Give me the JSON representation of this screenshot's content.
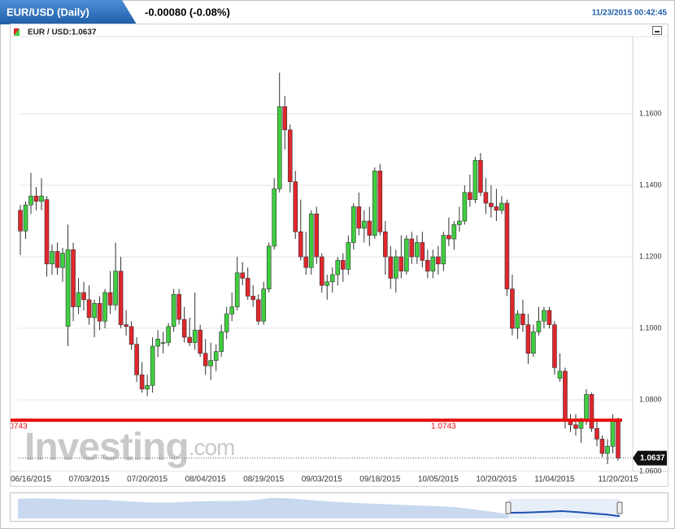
{
  "chart_data": {
    "type": "candlestick",
    "title": "EUR/USD (Daily)",
    "change": "-0.00080 (-0.08%)",
    "timestamp": "11/23/2015 00:42:45",
    "instrument_label": "EUR / USD:1.0637",
    "last_price": 1.0637,
    "hline": {
      "value": 1.0743,
      "color": "#e81010"
    },
    "watermark": "Investing",
    "watermark_suffix": ".com",
    "up_color": "#3fce3f",
    "down_color": "#e0262c",
    "grid": true,
    "ylim": [
      1.06,
      1.1816
    ],
    "yticks": [
      {
        "value": 1.06,
        "label": "1.0600"
      },
      {
        "value": 1.08,
        "label": "1.0800"
      },
      {
        "value": 1.1,
        "label": "1.1000"
      },
      {
        "value": 1.12,
        "label": "1.1200"
      },
      {
        "value": 1.14,
        "label": "1.1400"
      },
      {
        "value": 1.16,
        "label": "1.1600"
      }
    ],
    "categories": [
      null,
      null,
      "06/16/2015",
      null,
      null,
      null,
      null,
      null,
      null,
      null,
      null,
      null,
      null,
      "07/03/2015",
      null,
      null,
      null,
      null,
      null,
      null,
      null,
      null,
      null,
      null,
      "07/20/2015",
      null,
      null,
      null,
      null,
      null,
      null,
      null,
      null,
      null,
      null,
      "08/04/2015",
      null,
      null,
      null,
      null,
      null,
      null,
      null,
      null,
      null,
      null,
      "08/19/2015",
      null,
      null,
      null,
      null,
      null,
      null,
      null,
      null,
      null,
      null,
      "09/03/2015",
      null,
      null,
      null,
      null,
      null,
      null,
      null,
      null,
      null,
      null,
      "09/18/2015",
      null,
      null,
      null,
      null,
      null,
      null,
      null,
      null,
      null,
      null,
      "10/05/2015",
      null,
      null,
      null,
      null,
      null,
      null,
      null,
      null,
      null,
      null,
      "10/20/2015",
      null,
      null,
      null,
      null,
      null,
      null,
      null,
      null,
      null,
      null,
      "11/04/2015",
      null,
      null,
      null,
      null,
      null,
      null,
      null,
      null,
      null,
      null,
      null,
      "11/20/2015"
    ],
    "open": [
      1.133,
      1.1272,
      1.1345,
      1.137,
      1.1355,
      1.136,
      1.118,
      1.1215,
      1.117,
      1.1005,
      1.122,
      1.106,
      1.11,
      1.108,
      1.103,
      1.107,
      1.102,
      1.11,
      1.1065,
      1.116,
      1.101,
      1.1005,
      1.0955,
      1.087,
      1.083,
      1.084,
      1.095,
      1.096,
      1.096,
      1.1005,
      1.1095,
      1.1025,
      1.0975,
      1.096,
      1.0995,
      1.093,
      1.0895,
      1.091,
      1.0935,
      1.099,
      1.104,
      1.106,
      1.1155,
      1.114,
      1.109,
      1.108,
      1.102,
      1.111,
      1.123,
      1.139,
      1.162,
      1.1555,
      1.141,
      1.127,
      1.12,
      1.117,
      1.132,
      1.12,
      1.112,
      1.113,
      1.115,
      1.119,
      1.1165,
      1.124,
      1.134,
      1.128,
      1.13,
      1.126,
      1.144,
      1.127,
      1.12,
      1.114,
      1.12,
      1.116,
      1.125,
      1.12,
      1.124,
      1.119,
      1.116,
      1.12,
      1.118,
      1.126,
      1.125,
      1.129,
      1.13,
      1.138,
      1.136,
      1.147,
      1.138,
      1.135,
      1.134,
      1.133,
      1.135,
      1.111,
      1.1,
      1.104,
      1.101,
      1.093,
      1.099,
      1.102,
      1.105,
      1.101,
      1.086,
      1.088,
      1.074,
      1.073,
      1.072,
      1.074,
      1.0815,
      1.072,
      1.069,
      1.065,
      1.067,
      1.074
    ],
    "high": [
      1.1345,
      1.1355,
      1.1435,
      1.1395,
      1.142,
      1.137,
      1.1235,
      1.124,
      1.1225,
      1.129,
      1.124,
      1.114,
      1.113,
      1.112,
      1.108,
      1.109,
      1.111,
      1.116,
      1.124,
      1.12,
      1.105,
      1.102,
      1.0975,
      1.0905,
      1.087,
      1.0975,
      1.0995,
      1.099,
      1.1015,
      1.111,
      1.111,
      1.106,
      1.103,
      1.11,
      1.101,
      1.097,
      1.096,
      1.0955,
      1.101,
      1.106,
      1.11,
      1.12,
      1.1185,
      1.117,
      1.112,
      1.1095,
      1.113,
      1.124,
      1.142,
      1.1715,
      1.165,
      1.157,
      1.144,
      1.136,
      1.127,
      1.133,
      1.134,
      1.121,
      1.115,
      1.117,
      1.12,
      1.121,
      1.126,
      1.135,
      1.138,
      1.133,
      1.134,
      1.145,
      1.146,
      1.13,
      1.123,
      1.122,
      1.126,
      1.126,
      1.127,
      1.126,
      1.127,
      1.122,
      1.122,
      1.123,
      1.127,
      1.131,
      1.13,
      1.134,
      1.14,
      1.143,
      1.148,
      1.149,
      1.142,
      1.14,
      1.139,
      1.137,
      1.136,
      1.115,
      1.105,
      1.108,
      1.104,
      1.101,
      1.106,
      1.106,
      1.106,
      1.102,
      1.093,
      1.089,
      1.076,
      1.076,
      1.075,
      1.083,
      1.082,
      1.074,
      1.07,
      1.069,
      1.076,
      1.075
    ],
    "low": [
      1.1205,
      1.125,
      1.132,
      1.133,
      1.133,
      1.1145,
      1.115,
      1.115,
      1.113,
      1.095,
      1.102,
      1.104,
      1.105,
      1.101,
      1.0975,
      1.0995,
      1.1,
      1.104,
      1.105,
      1.1,
      1.098,
      1.094,
      1.085,
      1.082,
      1.081,
      1.082,
      1.092,
      1.093,
      1.095,
      1.099,
      1.101,
      1.096,
      1.095,
      1.094,
      1.092,
      1.087,
      1.0855,
      1.088,
      1.092,
      1.097,
      1.102,
      1.105,
      1.112,
      1.108,
      1.106,
      1.101,
      1.101,
      1.11,
      1.122,
      1.138,
      1.15,
      1.138,
      1.125,
      1.119,
      1.115,
      1.115,
      1.118,
      1.11,
      1.108,
      1.11,
      1.112,
      1.113,
      1.115,
      1.122,
      1.126,
      1.124,
      1.123,
      1.125,
      1.126,
      1.115,
      1.111,
      1.11,
      1.114,
      1.115,
      1.118,
      1.118,
      1.117,
      1.114,
      1.114,
      1.115,
      1.116,
      1.123,
      1.122,
      1.127,
      1.129,
      1.134,
      1.135,
      1.137,
      1.132,
      1.131,
      1.13,
      1.132,
      1.109,
      1.098,
      1.097,
      1.099,
      1.09,
      1.092,
      1.098,
      1.1,
      1.1,
      1.087,
      1.085,
      1.072,
      1.071,
      1.07,
      1.068,
      1.073,
      1.071,
      1.067,
      1.064,
      1.062,
      1.065,
      1.063
    ],
    "close": [
      1.1272,
      1.1345,
      1.137,
      1.1355,
      1.137,
      1.118,
      1.1215,
      1.117,
      1.121,
      1.122,
      1.106,
      1.11,
      1.108,
      1.103,
      1.107,
      1.102,
      1.11,
      1.1065,
      1.116,
      1.101,
      1.1005,
      1.0955,
      1.087,
      1.083,
      1.084,
      1.095,
      1.097,
      1.096,
      1.1005,
      1.1095,
      1.1025,
      1.0975,
      1.096,
      1.0995,
      1.093,
      1.0895,
      1.091,
      1.0935,
      1.099,
      1.104,
      1.106,
      1.1155,
      1.114,
      1.109,
      1.108,
      1.102,
      1.111,
      1.123,
      1.139,
      1.162,
      1.1555,
      1.141,
      1.127,
      1.12,
      1.117,
      1.132,
      1.12,
      1.112,
      1.113,
      1.115,
      1.119,
      1.1165,
      1.124,
      1.134,
      1.128,
      1.13,
      1.126,
      1.144,
      1.127,
      1.12,
      1.114,
      1.12,
      1.116,
      1.125,
      1.12,
      1.124,
      1.119,
      1.116,
      1.12,
      1.118,
      1.126,
      1.125,
      1.129,
      1.13,
      1.138,
      1.136,
      1.147,
      1.138,
      1.135,
      1.134,
      1.133,
      1.135,
      1.111,
      1.1,
      1.104,
      1.101,
      1.093,
      1.099,
      1.102,
      1.105,
      1.101,
      1.089,
      1.088,
      1.074,
      1.073,
      1.072,
      1.074,
      1.0815,
      1.072,
      1.069,
      1.065,
      1.067,
      1.074,
      1.0637
    ]
  }
}
